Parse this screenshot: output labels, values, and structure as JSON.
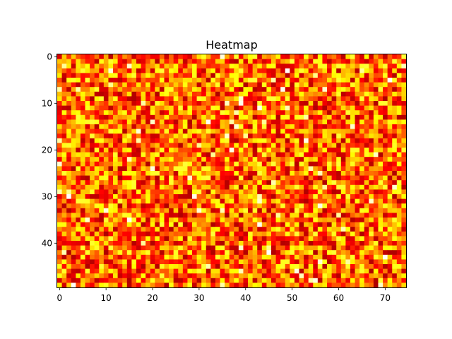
{
  "chart_data": {
    "type": "heatmap",
    "title": "Heatmap",
    "xlabel": "",
    "ylabel": "",
    "rows": 50,
    "cols": 75,
    "colormap": "hot",
    "value_range": [
      0,
      1
    ],
    "x_ticks": [
      "0",
      "10",
      "20",
      "30",
      "40",
      "50",
      "60",
      "70"
    ],
    "y_ticks": [
      "0",
      "10",
      "20",
      "30",
      "40"
    ],
    "y_axis_inverted": true,
    "grid": false,
    "legend": "none",
    "values_note": ""
  }
}
